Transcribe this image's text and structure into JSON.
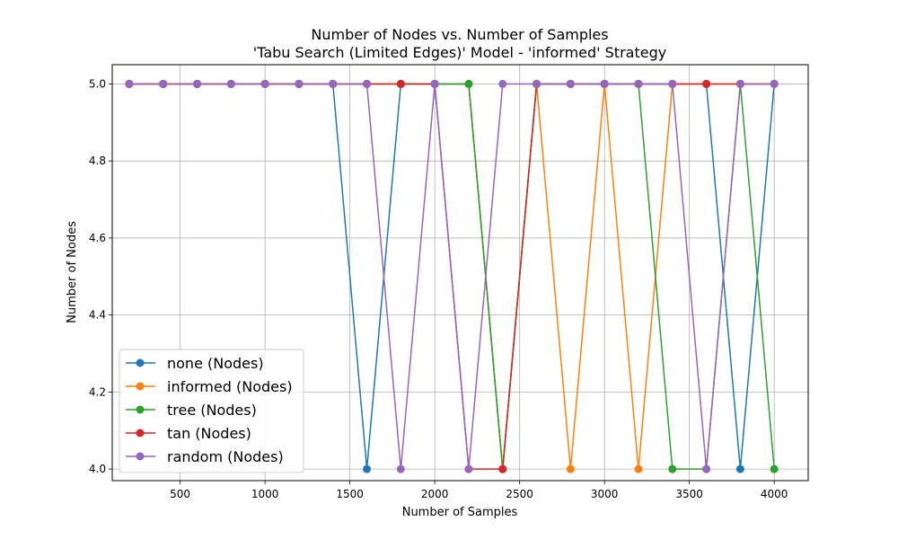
{
  "chart_data": {
    "type": "line",
    "title": "Number of Nodes vs. Number of Samples",
    "subtitle": "'Tabu Search (Limited Edges)' Model - 'informed' Strategy",
    "xlabel": "Number of Samples",
    "ylabel": "Number of Nodes",
    "xlim": [
      100,
      4200
    ],
    "ylim": [
      3.97,
      5.05
    ],
    "xticks": [
      500,
      1000,
      1500,
      2000,
      2500,
      3000,
      3500,
      4000
    ],
    "yticks": [
      4.0,
      4.2,
      4.4,
      4.6,
      4.8,
      5.0
    ],
    "grid": true,
    "legend_position": "lower-left",
    "x": [
      200,
      400,
      600,
      800,
      1000,
      1200,
      1400,
      1600,
      1800,
      2000,
      2200,
      2400,
      2600,
      2800,
      3000,
      3200,
      3400,
      3600,
      3800,
      4000
    ],
    "series": [
      {
        "name": "none (Nodes)",
        "color": "#1f77b4",
        "values": [
          5,
          5,
          5,
          5,
          5,
          5,
          5,
          4,
          5,
          5,
          5,
          4,
          5,
          5,
          5,
          5,
          5,
          5,
          4,
          5
        ]
      },
      {
        "name": "informed (Nodes)",
        "color": "#ff7f0e",
        "values": [
          5,
          5,
          5,
          5,
          5,
          5,
          5,
          5,
          5,
          5,
          5,
          4,
          5,
          4,
          5,
          4,
          5,
          5,
          5,
          5
        ]
      },
      {
        "name": "tree (Nodes)",
        "color": "#2ca02c",
        "values": [
          5,
          5,
          5,
          5,
          5,
          5,
          5,
          5,
          5,
          5,
          5,
          4,
          5,
          5,
          5,
          5,
          4,
          4,
          5,
          4
        ]
      },
      {
        "name": "tan (Nodes)",
        "color": "#d62728",
        "values": [
          5,
          5,
          5,
          5,
          5,
          5,
          5,
          5,
          5,
          5,
          4,
          4,
          5,
          5,
          5,
          5,
          5,
          5,
          5,
          5
        ]
      },
      {
        "name": "random (Nodes)",
        "color": "#9467bd",
        "values": [
          5,
          5,
          5,
          5,
          5,
          5,
          5,
          5,
          4,
          5,
          4,
          5,
          5,
          5,
          5,
          5,
          5,
          4,
          5,
          5
        ]
      }
    ]
  }
}
